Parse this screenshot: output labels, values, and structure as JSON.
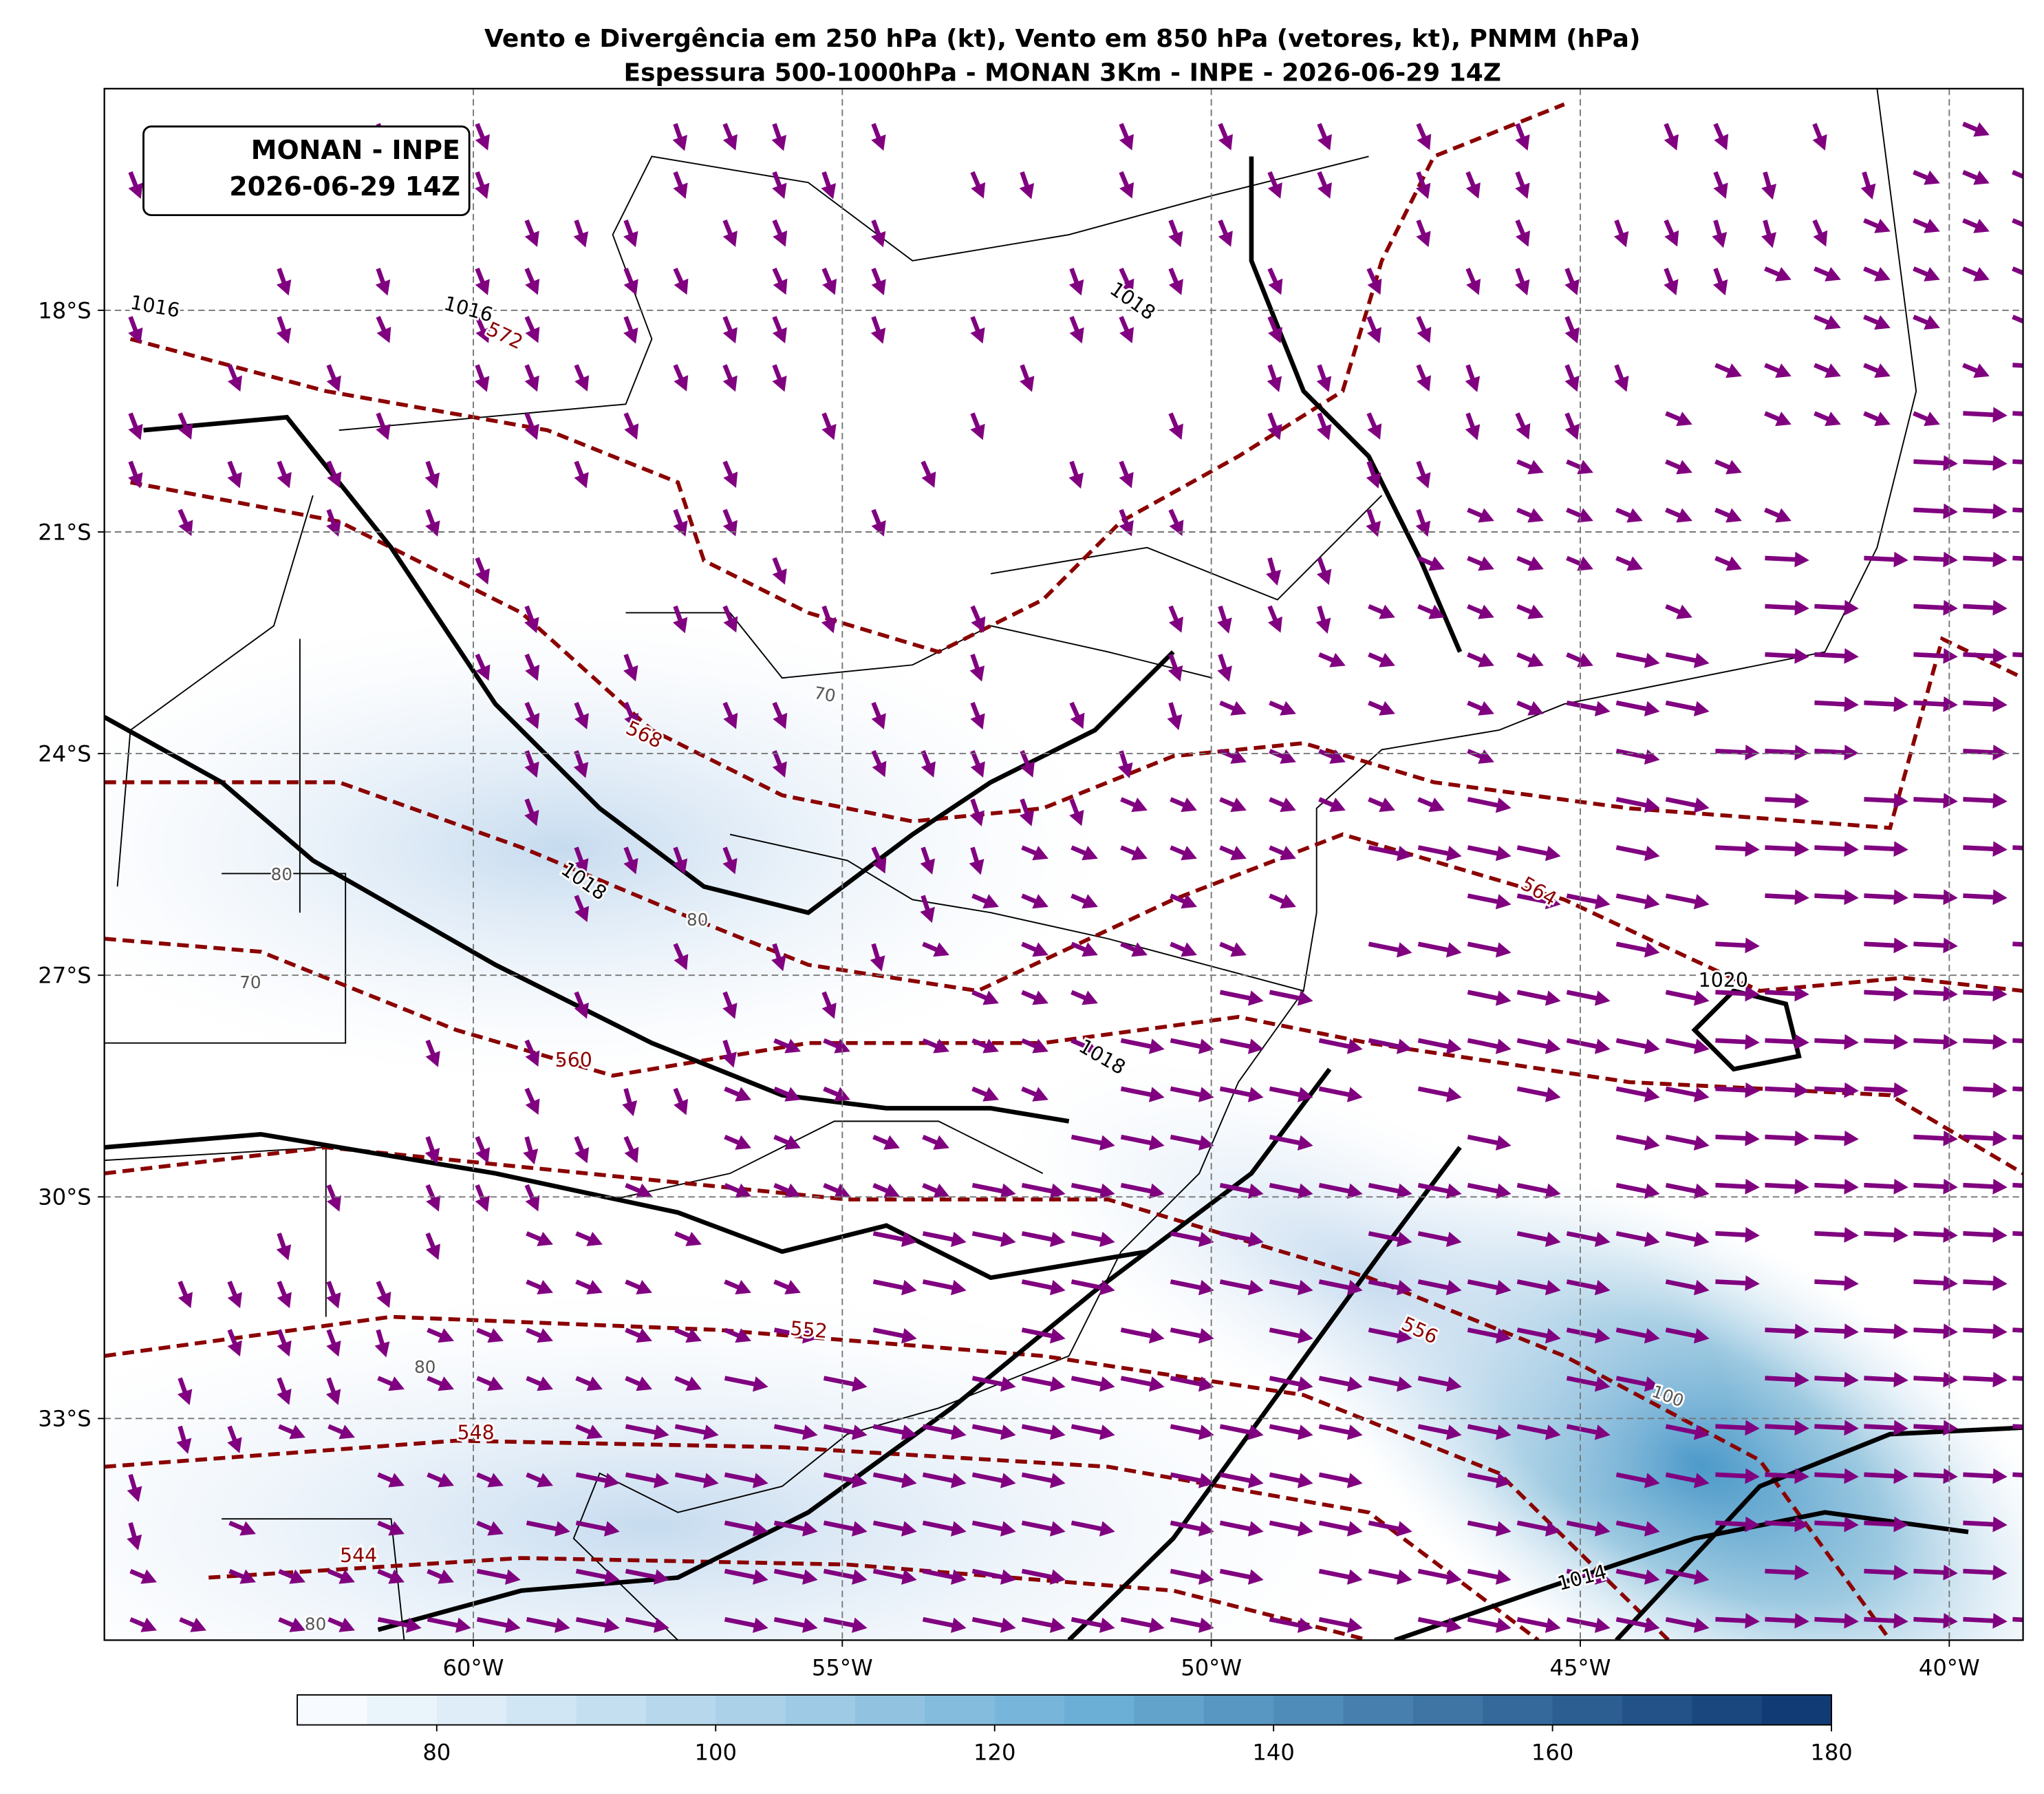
{
  "chart_data": {
    "type": "map",
    "title": [
      "Vento e Divergência em 250 hPa (kt), Vento em 850 hPa (vetores, kt), PNMM (hPa)",
      "Espessura 500-1000hPa - MONAN 3Km - INPE - 2026-06-29 14Z"
    ],
    "annotation": [
      "MONAN - INPE",
      "2026-06-29 14Z"
    ],
    "xlim": [
      -65,
      -39
    ],
    "ylim": [
      -36,
      -15
    ],
    "xticks": [
      {
        "value": -60,
        "label": "60°W"
      },
      {
        "value": -55,
        "label": "55°W"
      },
      {
        "value": -50,
        "label": "50°W"
      },
      {
        "value": -45,
        "label": "45°W"
      },
      {
        "value": -40,
        "label": "40°W"
      }
    ],
    "yticks": [
      {
        "value": -18,
        "label": "18°S"
      },
      {
        "value": -21,
        "label": "21°S"
      },
      {
        "value": -24,
        "label": "24°S"
      },
      {
        "value": -27,
        "label": "27°S"
      },
      {
        "value": -30,
        "label": "30°S"
      },
      {
        "value": -33,
        "label": "33°S"
      }
    ],
    "grid": true,
    "colorbar": {
      "lim": [
        70,
        180
      ],
      "ticks": [
        80,
        100,
        120,
        140,
        160,
        180
      ],
      "step": 5
    },
    "isobar_labels": [
      1016,
      1016,
      1018,
      1018,
      1018,
      1020,
      1014
    ],
    "thickness_labels": [
      572,
      568,
      564,
      560,
      556,
      552,
      548,
      544
    ],
    "wind_labels": [
      70,
      80,
      80,
      70,
      80,
      100,
      80
    ]
  }
}
